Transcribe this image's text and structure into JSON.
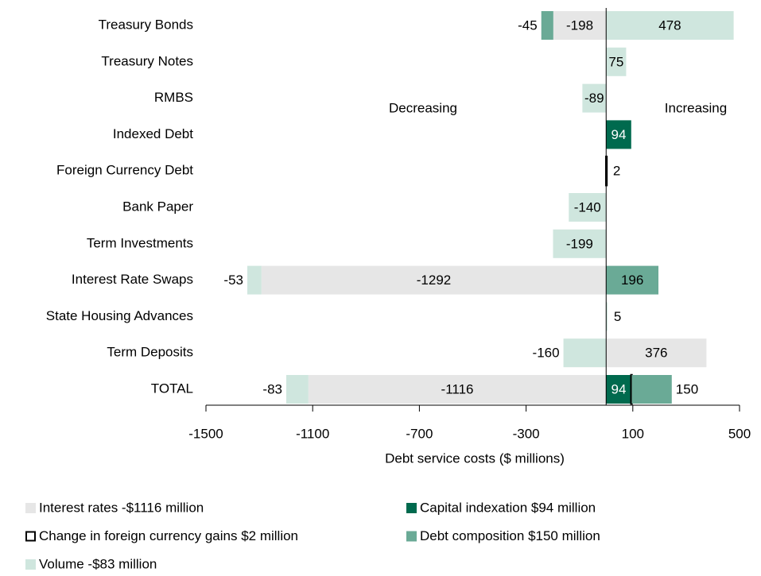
{
  "chart_data": {
    "type": "barh_stacked",
    "xlabel": "Debt service costs ($ millions)",
    "annotations": [
      "Decreasing",
      "Increasing"
    ],
    "categories": [
      "Treasury Bonds",
      "Treasury Notes",
      "RMBS",
      "Indexed Debt",
      "Foreign Currency Debt",
      "Bank Paper",
      "Term Investments",
      "Interest Rate Swaps",
      "State Housing Advances",
      "Term Deposits",
      "TOTAL"
    ],
    "series": [
      {
        "name": "Interest rates -$1116 million",
        "color": "#e6e6e6",
        "values": [
          -198,
          null,
          null,
          null,
          null,
          null,
          null,
          -1292,
          null,
          376,
          -1116
        ]
      },
      {
        "name": "Capital indexation $94 million",
        "color": "#006a4e",
        "values": [
          null,
          null,
          null,
          94,
          null,
          null,
          null,
          null,
          null,
          null,
          94
        ]
      },
      {
        "name": "Change in foreign currency gains $2 million",
        "color": "#ffffff",
        "edgecolor": "#000000",
        "values": [
          null,
          null,
          null,
          null,
          2,
          null,
          null,
          null,
          null,
          null,
          2
        ]
      },
      {
        "name": "Debt composition $150 million",
        "color": "#6aaa96",
        "values": [
          -45,
          null,
          null,
          null,
          null,
          null,
          null,
          196,
          null,
          null,
          150
        ]
      },
      {
        "name": "Volume -$83 million",
        "color": "#cfe6de",
        "values": [
          478,
          75,
          -89,
          null,
          null,
          -140,
          -199,
          -53,
          5,
          -160,
          -83
        ]
      }
    ],
    "xlim": [
      -1500,
      500
    ],
    "xticks": [
      -1500,
      -1100,
      -700,
      -300,
      100,
      500
    ]
  }
}
